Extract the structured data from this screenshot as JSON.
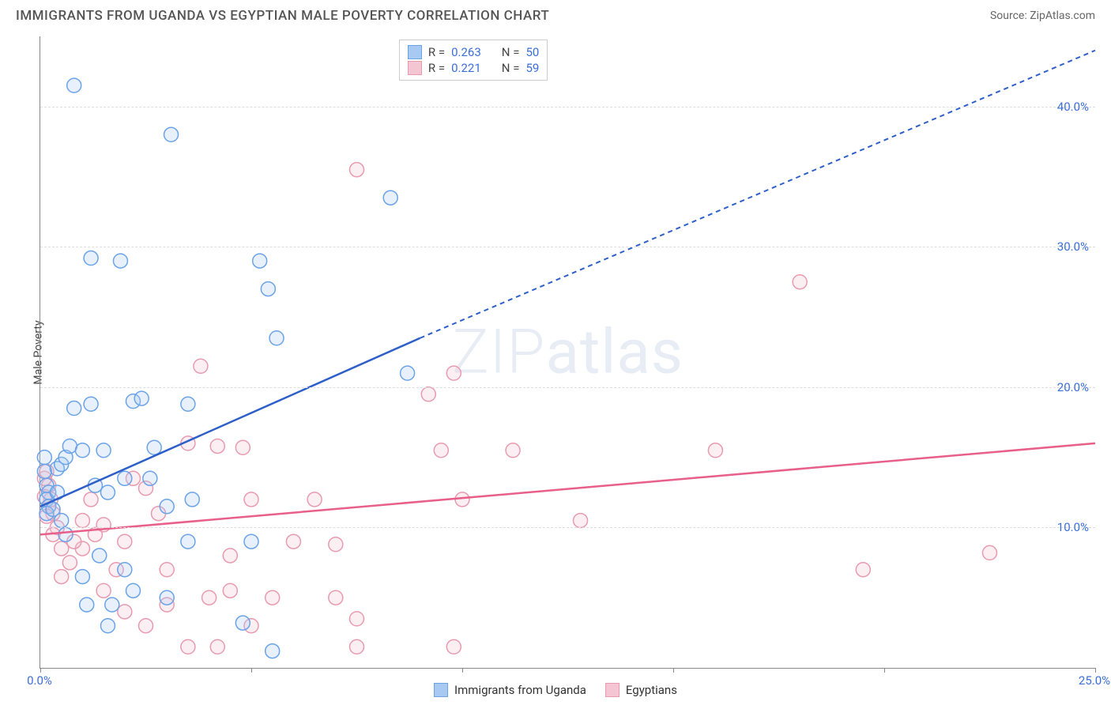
{
  "title": "IMMIGRANTS FROM UGANDA VS EGYPTIAN MALE POVERTY CORRELATION CHART",
  "source": "Source: ZipAtlas.com",
  "ylabel": "Male Poverty",
  "watermark": "ZIPatlas",
  "chart": {
    "type": "scatter",
    "xlim": [
      0,
      25
    ],
    "ylim": [
      0,
      45
    ],
    "x_ticks": [
      0,
      5,
      10,
      15,
      20,
      25
    ],
    "x_tick_labels": [
      "0.0%",
      "",
      "",
      "",
      "",
      "25.0%"
    ],
    "y_gridlines": [
      10,
      20,
      30,
      40
    ],
    "y_tick_labels": [
      "10.0%",
      "20.0%",
      "30.0%",
      "40.0%"
    ],
    "background_color": "#ffffff",
    "grid_color": "#dddddd",
    "axis_color": "#888888",
    "tick_label_color": "#3a6fd8",
    "marker_radius": 9,
    "marker_stroke_width": 1.5,
    "marker_fill_opacity": 0.28,
    "line_width": 2.5,
    "dash_pattern": "6,5"
  },
  "series": [
    {
      "name": "Immigrants from Uganda",
      "color_stroke": "#6aa3e8",
      "color_fill": "#a8caf2",
      "line_color": "#2e5fc9",
      "R": "0.263",
      "N": "50",
      "regression": {
        "solid_from": [
          0,
          11.5
        ],
        "solid_to": [
          9,
          23.5
        ],
        "dash_to": [
          25,
          44
        ]
      },
      "points": [
        [
          0.8,
          41.5
        ],
        [
          3.1,
          38.0
        ],
        [
          1.2,
          29.2
        ],
        [
          1.9,
          29.0
        ],
        [
          5.2,
          29.0
        ],
        [
          5.4,
          27.0
        ],
        [
          5.6,
          23.5
        ],
        [
          8.3,
          33.5
        ],
        [
          8.7,
          21.0
        ],
        [
          0.1,
          15.0
        ],
        [
          0.1,
          14.0
        ],
        [
          0.15,
          13.0
        ],
        [
          0.2,
          12.5
        ],
        [
          0.15,
          12.0
        ],
        [
          0.2,
          11.5
        ],
        [
          0.15,
          11.0
        ],
        [
          0.3,
          11.3
        ],
        [
          0.4,
          12.5
        ],
        [
          0.4,
          14.2
        ],
        [
          0.5,
          14.5
        ],
        [
          0.6,
          15.0
        ],
        [
          0.7,
          15.8
        ],
        [
          0.8,
          18.5
        ],
        [
          1.0,
          15.5
        ],
        [
          1.2,
          18.8
        ],
        [
          1.3,
          13.0
        ],
        [
          1.5,
          15.5
        ],
        [
          1.6,
          12.5
        ],
        [
          2.0,
          13.5
        ],
        [
          2.2,
          19.0
        ],
        [
          2.4,
          19.2
        ],
        [
          2.6,
          13.5
        ],
        [
          2.7,
          15.7
        ],
        [
          3.0,
          11.5
        ],
        [
          3.5,
          18.8
        ],
        [
          3.6,
          12.0
        ],
        [
          0.5,
          10.5
        ],
        [
          0.6,
          9.5
        ],
        [
          1.0,
          6.5
        ],
        [
          1.1,
          4.5
        ],
        [
          1.4,
          8.0
        ],
        [
          1.6,
          3.0
        ],
        [
          1.7,
          4.5
        ],
        [
          2.0,
          7.0
        ],
        [
          2.2,
          5.5
        ],
        [
          3.0,
          5.0
        ],
        [
          3.5,
          9.0
        ],
        [
          4.8,
          3.2
        ],
        [
          5.0,
          9.0
        ],
        [
          5.5,
          1.2
        ]
      ]
    },
    {
      "name": "Egyptians",
      "color_stroke": "#e89ab0",
      "color_fill": "#f4c5d3",
      "line_color": "#e85f8a",
      "R": "0.221",
      "N": "59",
      "regression": {
        "solid_from": [
          0,
          9.5
        ],
        "solid_to": [
          25,
          16.0
        ],
        "dash_to": null
      },
      "points": [
        [
          7.5,
          35.5
        ],
        [
          9.8,
          21.0
        ],
        [
          9.2,
          19.5
        ],
        [
          9.5,
          15.5
        ],
        [
          11.2,
          15.5
        ],
        [
          10.0,
          12.0
        ],
        [
          12.8,
          10.5
        ],
        [
          16.0,
          15.5
        ],
        [
          18.0,
          27.5
        ],
        [
          19.5,
          7.0
        ],
        [
          22.5,
          8.2
        ],
        [
          3.8,
          21.5
        ],
        [
          3.5,
          16.0
        ],
        [
          4.2,
          15.8
        ],
        [
          4.8,
          15.7
        ],
        [
          5.0,
          12.0
        ],
        [
          6.5,
          12.0
        ],
        [
          6.0,
          9.0
        ],
        [
          7.0,
          8.8
        ],
        [
          7.0,
          5.0
        ],
        [
          7.5,
          3.5
        ],
        [
          7.5,
          1.5
        ],
        [
          9.8,
          1.5
        ],
        [
          4.5,
          8.0
        ],
        [
          4.2,
          1.5
        ],
        [
          3.5,
          1.5
        ],
        [
          3.0,
          7.0
        ],
        [
          3.0,
          4.5
        ],
        [
          2.5,
          3.0
        ],
        [
          2.0,
          9.0
        ],
        [
          1.8,
          7.0
        ],
        [
          1.5,
          5.5
        ],
        [
          1.3,
          9.5
        ],
        [
          1.0,
          8.5
        ],
        [
          1.0,
          10.5
        ],
        [
          0.8,
          9.0
        ],
        [
          0.7,
          7.5
        ],
        [
          0.5,
          8.5
        ],
        [
          0.5,
          6.5
        ],
        [
          0.4,
          10.0
        ],
        [
          0.3,
          9.5
        ],
        [
          0.3,
          11.0
        ],
        [
          0.25,
          12.0
        ],
        [
          0.2,
          13.0
        ],
        [
          0.2,
          11.5
        ],
        [
          0.15,
          10.8
        ],
        [
          0.1,
          13.5
        ],
        [
          0.1,
          12.2
        ],
        [
          0.15,
          14.0
        ],
        [
          2.2,
          13.5
        ],
        [
          2.5,
          12.8
        ],
        [
          2.8,
          11.0
        ],
        [
          1.2,
          12.0
        ],
        [
          1.5,
          10.2
        ],
        [
          4.0,
          5.0
        ],
        [
          4.5,
          5.5
        ],
        [
          5.5,
          5.0
        ],
        [
          5.0,
          3.0
        ],
        [
          2.0,
          4.0
        ]
      ]
    }
  ],
  "legend_top": {
    "r_label": "R =",
    "n_label": "N ="
  },
  "legend_bottom_labels": [
    "Immigrants from Uganda",
    "Egyptians"
  ]
}
